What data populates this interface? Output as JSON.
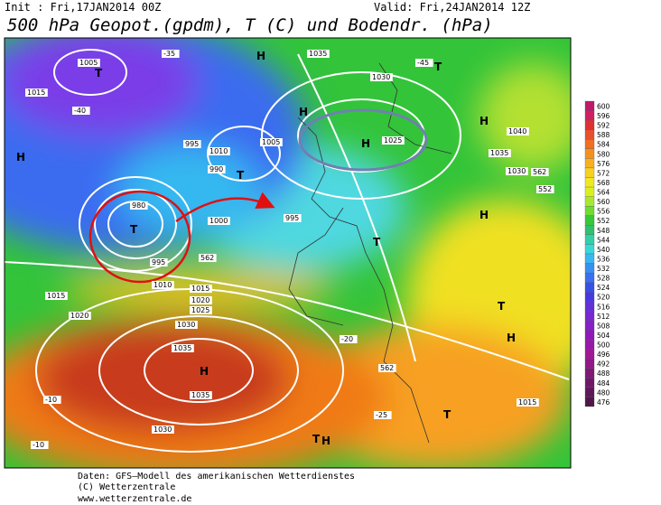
{
  "header": {
    "init": "Init : Fri,17JAN2014 00Z",
    "valid": "Valid: Fri,24JAN2014 12Z",
    "title": "500 hPa Geopot.(gpdm), T (C) und Bodendr. (hPa)"
  },
  "legend": {
    "levels": [
      600,
      596,
      592,
      588,
      584,
      580,
      576,
      572,
      568,
      564,
      560,
      556,
      552,
      548,
      544,
      540,
      536,
      532,
      528,
      524,
      520,
      516,
      512,
      508,
      504,
      500,
      496,
      492,
      488,
      484,
      480,
      476
    ]
  },
  "map": {
    "labels": [
      "1005",
      "T",
      "1015",
      "-40",
      "H",
      "995",
      "1010",
      "990",
      "T",
      "1005",
      "H",
      "1035",
      "1030",
      "T",
      "H",
      "H",
      "1025",
      "H",
      "1040",
      "1035",
      "1030",
      "562",
      "552",
      "H",
      "T",
      "995",
      "1000",
      "980",
      "T",
      "995",
      "1010",
      "562",
      "1015",
      "1020",
      "1025",
      "1030",
      "1035",
      "H",
      "1035",
      "1030",
      "1015",
      "1020",
      "-10",
      "-10",
      "T",
      "H",
      "1015",
      "T",
      "T",
      "H",
      "562",
      "-25",
      "-20",
      "-35",
      "-45"
    ]
  },
  "footer": {
    "lines": [
      "Daten: GFS–Modell des amerikanischen Wetterdienstes",
      "(C) Wetterzentrale",
      "www.wetterzentrale.de"
    ]
  }
}
